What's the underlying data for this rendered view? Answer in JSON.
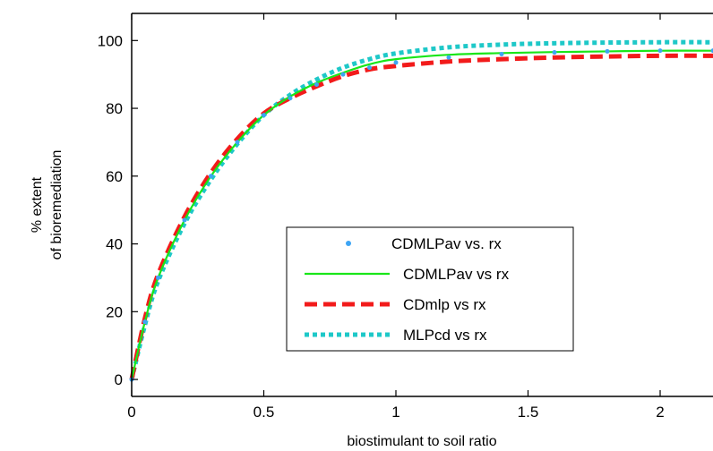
{
  "chart_data": {
    "type": "line",
    "xlabel": "biostimulant to soil ratio",
    "ylabel": [
      "% extent",
      "of bioremediation"
    ],
    "xlim": [
      0,
      2.2
    ],
    "ylim": [
      -5,
      108
    ],
    "xticks": [
      0,
      0.5,
      1,
      1.5,
      2
    ],
    "xtick_labels": [
      "0",
      "0.5",
      "1",
      "1.5",
      "2"
    ],
    "yticks": [
      0,
      20,
      40,
      60,
      80,
      100
    ],
    "ytick_labels": [
      "0",
      "20",
      "40",
      "60",
      "80",
      "100"
    ],
    "grid": false,
    "legend_position": "center-right",
    "series": [
      {
        "name": "CDMLPav vs. rx",
        "style": "point",
        "color": "#3da5f4",
        "x": [
          0,
          0.05,
          0.1,
          0.2,
          0.3,
          0.4,
          0.5,
          0.6,
          0.7,
          0.8,
          0.9,
          1.0,
          1.2,
          1.4,
          1.6,
          1.8,
          2.0,
          2.2
        ],
        "y": [
          0,
          17,
          30,
          47,
          60,
          70,
          78,
          83,
          87,
          90,
          92,
          93.5,
          95,
          96,
          96.5,
          96.8,
          97,
          97
        ]
      },
      {
        "name": "CDMLPav vs rx",
        "style": "solid",
        "color": "#19e619",
        "x": [
          0,
          0.05,
          0.1,
          0.2,
          0.3,
          0.4,
          0.5,
          0.6,
          0.7,
          0.8,
          0.9,
          1.0,
          1.2,
          1.4,
          1.6,
          1.8,
          2.0,
          2.2
        ],
        "y": [
          0,
          17,
          30,
          47,
          60,
          70,
          78,
          83.5,
          87.5,
          90.5,
          93,
          94.5,
          95.8,
          96.3,
          96.6,
          96.8,
          97,
          97
        ]
      },
      {
        "name": "CDmlp vs rx",
        "style": "dashed",
        "color": "#f21b1b",
        "x": [
          0,
          0.05,
          0.1,
          0.2,
          0.3,
          0.4,
          0.5,
          0.6,
          0.7,
          0.8,
          0.9,
          1.0,
          1.2,
          1.4,
          1.6,
          1.8,
          2.0,
          2.2
        ],
        "y": [
          0,
          18,
          31,
          48,
          61,
          71,
          78.5,
          83,
          86.5,
          89.5,
          91.5,
          92.5,
          93.8,
          94.5,
          95,
          95.3,
          95.5,
          95.5
        ]
      },
      {
        "name": "MLPcd vs rx",
        "style": "dotted",
        "color": "#1ec8c8",
        "x": [
          0,
          0.05,
          0.1,
          0.2,
          0.3,
          0.4,
          0.5,
          0.6,
          0.7,
          0.8,
          0.9,
          1.0,
          1.2,
          1.4,
          1.6,
          1.8,
          2.0,
          2.2
        ],
        "y": [
          0,
          16,
          29,
          46,
          59,
          69.5,
          78,
          84,
          88.5,
          92,
          94.5,
          96.2,
          98,
          98.8,
          99.2,
          99.4,
          99.5,
          99.5
        ]
      }
    ]
  }
}
